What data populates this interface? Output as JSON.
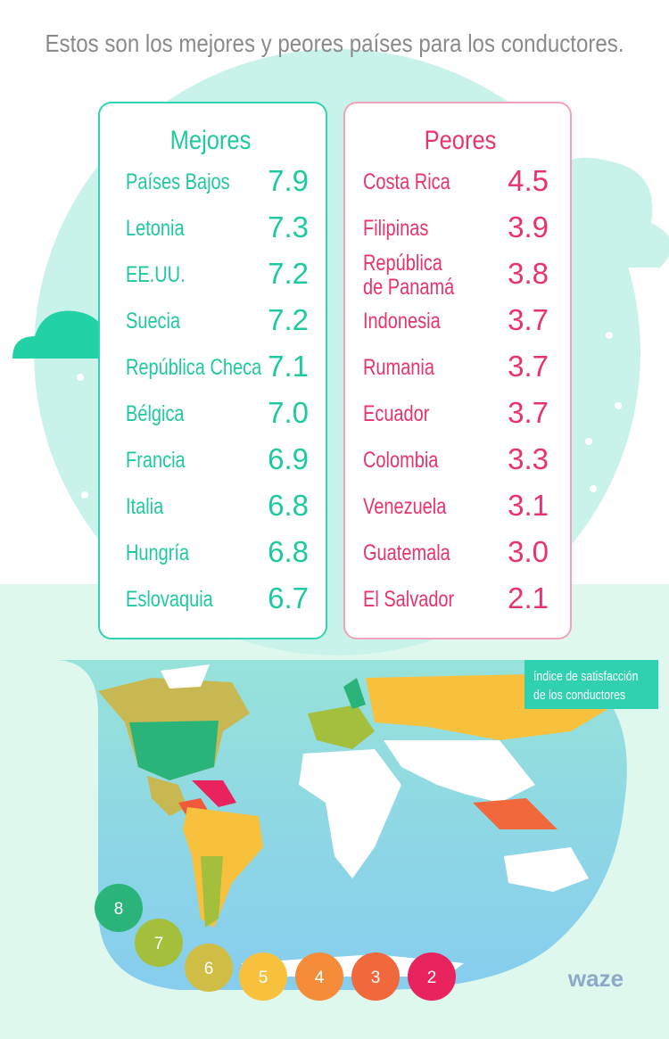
{
  "header": {
    "title": "Estos son los mejores y peores países para los conductores."
  },
  "best": {
    "heading": "Mejores",
    "rows": [
      {
        "name": "Países Bajos",
        "score": "7.9"
      },
      {
        "name": "Letonia",
        "score": "7.3"
      },
      {
        "name": "EE.UU.",
        "score": "7.2"
      },
      {
        "name": "Suecia",
        "score": "7.2"
      },
      {
        "name": "República Checa",
        "score": "7.1"
      },
      {
        "name": "Bélgica",
        "score": "7.0"
      },
      {
        "name": "Francia",
        "score": "6.9"
      },
      {
        "name": "Italia",
        "score": "6.8"
      },
      {
        "name": "Hungría",
        "score": "6.8"
      },
      {
        "name": "Eslovaquia",
        "score": "6.7"
      }
    ]
  },
  "worst": {
    "heading": "Peores",
    "rows": [
      {
        "name": "Costa Rica",
        "score": "4.5"
      },
      {
        "name": "Filipinas",
        "score": "3.9"
      },
      {
        "name": [
          "República",
          "de Panamá"
        ],
        "score": "3.8"
      },
      {
        "name": "Indonesia",
        "score": "3.7"
      },
      {
        "name": "Rumania",
        "score": "3.7"
      },
      {
        "name": "Ecuador",
        "score": "3.7"
      },
      {
        "name": "Colombia",
        "score": "3.3"
      },
      {
        "name": "Venezuela",
        "score": "3.1"
      },
      {
        "name": "Guatemala",
        "score": "3.0"
      },
      {
        "name": "El Salvador",
        "score": "2.1"
      }
    ]
  },
  "map": {
    "legend_title": [
      "índice de satisfacción",
      "de los conductores"
    ],
    "scale": [
      {
        "label": "8",
        "color": "#2bb47a"
      },
      {
        "label": "7",
        "color": "#a3bf3c"
      },
      {
        "label": "6",
        "color": "#cfbd45"
      },
      {
        "label": "5",
        "color": "#f8c13d"
      },
      {
        "label": "4",
        "color": "#f58c3a"
      },
      {
        "label": "3",
        "color": "#f1683d"
      },
      {
        "label": "2",
        "color": "#e8235e"
      }
    ]
  },
  "footer": {
    "brand": "waze"
  }
}
